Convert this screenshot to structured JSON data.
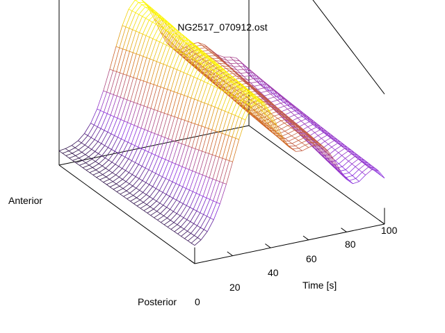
{
  "chart_data": {
    "type": "surface",
    "title": "NG2517_070912.ost",
    "xlabel": "Time [s]",
    "y_labels": {
      "front": "Posterior",
      "back": "Anterior"
    },
    "x_ticks": [
      "0",
      "20",
      "40",
      "60",
      "80",
      "100"
    ],
    "xlim": [
      0,
      100
    ],
    "grid": false,
    "legend": "none",
    "colormap": [
      "#000000",
      "#8a2be2",
      "#d2691e",
      "#ffff00"
    ],
    "surface": {
      "description": "wireframe surface, value as a function of time and position",
      "rows": 40,
      "cols": 30,
      "baseline": 0.1,
      "wave_1": {
        "peak_time": 37,
        "peak_value": 1.0,
        "width": 18
      },
      "wave_2": {
        "peak_time": 70,
        "peak_value": 0.55,
        "width": 16
      },
      "wave_3": {
        "peak_time": 95,
        "peak_value": 0.3,
        "width": 10
      }
    }
  }
}
